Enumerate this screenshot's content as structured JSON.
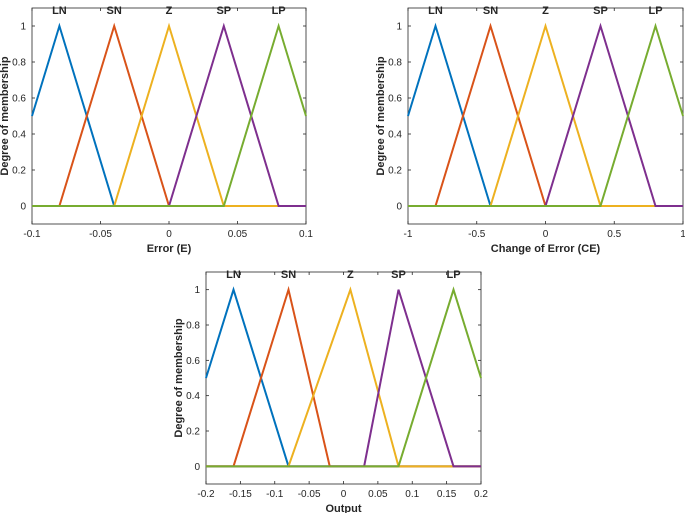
{
  "chart_data": [
    {
      "type": "line",
      "title": "",
      "xlabel": "Error (E)",
      "ylabel": "Degree of membership",
      "xlim": [
        -0.1,
        0.1
      ],
      "ylim": [
        -0.1,
        1.1
      ],
      "xticks": [
        -0.1,
        -0.05,
        0,
        0.05,
        0.1
      ],
      "xtick_labels": [
        "-0.1",
        "-0.05",
        "0",
        "0.05",
        "0.1"
      ],
      "yticks": [
        0,
        0.2,
        0.4,
        0.6,
        0.8,
        1
      ],
      "ytick_labels": [
        "0",
        "0.2",
        "0.4",
        "0.6",
        "0.8",
        "1"
      ],
      "series": [
        {
          "name": "LN",
          "color": "#0072BD",
          "x": [
            -0.1,
            -0.08,
            -0.04,
            0.1
          ],
          "y": [
            0.5,
            1,
            0,
            0
          ]
        },
        {
          "name": "SN",
          "color": "#D95319",
          "x": [
            -0.1,
            -0.08,
            -0.04,
            0,
            0.1
          ],
          "y": [
            0,
            0,
            1,
            0,
            0
          ]
        },
        {
          "name": "Z",
          "color": "#EDB120",
          "x": [
            -0.1,
            -0.04,
            0,
            0.04,
            0.1
          ],
          "y": [
            0,
            0,
            1,
            0,
            0
          ]
        },
        {
          "name": "SP",
          "color": "#7E2F8E",
          "x": [
            -0.1,
            0,
            0.04,
            0.08,
            0.1
          ],
          "y": [
            0,
            0,
            1,
            0,
            0
          ]
        },
        {
          "name": "LP",
          "color": "#77AC30",
          "x": [
            -0.1,
            0.04,
            0.08,
            0.1
          ],
          "y": [
            0,
            0,
            1,
            0.5
          ]
        }
      ],
      "set_labels": [
        {
          "text": "LN",
          "x": -0.08
        },
        {
          "text": "SN",
          "x": -0.04
        },
        {
          "text": "Z",
          "x": 0
        },
        {
          "text": "SP",
          "x": 0.04
        },
        {
          "text": "LP",
          "x": 0.08
        }
      ]
    },
    {
      "type": "line",
      "title": "",
      "xlabel": "Change of Error (CE)",
      "ylabel": "Degree of membership",
      "xlim": [
        -1,
        1
      ],
      "ylim": [
        -0.1,
        1.1
      ],
      "xticks": [
        -1,
        -0.5,
        0,
        0.5,
        1
      ],
      "xtick_labels": [
        "-1",
        "-0.5",
        "0",
        "0.5",
        "1"
      ],
      "yticks": [
        0,
        0.2,
        0.4,
        0.6,
        0.8,
        1
      ],
      "ytick_labels": [
        "0",
        "0.2",
        "0.4",
        "0.6",
        "0.8",
        "1"
      ],
      "series": [
        {
          "name": "LN",
          "color": "#0072BD",
          "x": [
            -1,
            -0.8,
            -0.4,
            1
          ],
          "y": [
            0.5,
            1,
            0,
            0
          ]
        },
        {
          "name": "SN",
          "color": "#D95319",
          "x": [
            -1,
            -0.8,
            -0.4,
            0,
            1
          ],
          "y": [
            0,
            0,
            1,
            0,
            0
          ]
        },
        {
          "name": "Z",
          "color": "#EDB120",
          "x": [
            -1,
            -0.4,
            0,
            0.4,
            1
          ],
          "y": [
            0,
            0,
            1,
            0,
            0
          ]
        },
        {
          "name": "SP",
          "color": "#7E2F8E",
          "x": [
            -1,
            0,
            0.4,
            0.8,
            1
          ],
          "y": [
            0,
            0,
            1,
            0,
            0
          ]
        },
        {
          "name": "LP",
          "color": "#77AC30",
          "x": [
            -1,
            0.4,
            0.8,
            1
          ],
          "y": [
            0,
            0,
            1,
            0.5
          ]
        }
      ],
      "set_labels": [
        {
          "text": "LN",
          "x": -0.8
        },
        {
          "text": "SN",
          "x": -0.4
        },
        {
          "text": "Z",
          "x": 0
        },
        {
          "text": "SP",
          "x": 0.4
        },
        {
          "text": "LP",
          "x": 0.8
        }
      ]
    },
    {
      "type": "line",
      "title": "",
      "xlabel": "Output",
      "ylabel": "Degree of membership",
      "xlim": [
        -0.2,
        0.2
      ],
      "ylim": [
        -0.1,
        1.1
      ],
      "xticks": [
        -0.2,
        -0.15,
        -0.1,
        -0.05,
        0,
        0.05,
        0.1,
        0.15,
        0.2
      ],
      "xtick_labels": [
        "-0.2",
        "-0.15",
        "-0.1",
        "-0.05",
        "0",
        "0.05",
        "0.1",
        "0.15",
        "0.2"
      ],
      "yticks": [
        0,
        0.2,
        0.4,
        0.6,
        0.8,
        1
      ],
      "ytick_labels": [
        "0",
        "0.2",
        "0.4",
        "0.6",
        "0.8",
        "1"
      ],
      "series": [
        {
          "name": "LN",
          "color": "#0072BD",
          "x": [
            -0.2,
            -0.16,
            -0.08,
            0.2
          ],
          "y": [
            0.5,
            1,
            0,
            0
          ]
        },
        {
          "name": "SN",
          "color": "#D95319",
          "x": [
            -0.2,
            -0.16,
            -0.08,
            -0.02,
            0.2
          ],
          "y": [
            0,
            0,
            1,
            0,
            0
          ]
        },
        {
          "name": "Z",
          "color": "#EDB120",
          "x": [
            -0.2,
            -0.08,
            0.01,
            0.08,
            0.2
          ],
          "y": [
            0,
            0,
            1,
            0,
            0
          ]
        },
        {
          "name": "SP",
          "color": "#7E2F8E",
          "x": [
            -0.2,
            0.03,
            0.08,
            0.16,
            0.2
          ],
          "y": [
            0,
            0,
            1,
            0,
            0
          ]
        },
        {
          "name": "LP",
          "color": "#77AC30",
          "x": [
            -0.2,
            0.08,
            0.16,
            0.2
          ],
          "y": [
            0,
            0,
            1,
            0.5
          ]
        }
      ],
      "set_labels": [
        {
          "text": "LN",
          "x": -0.16
        },
        {
          "text": "SN",
          "x": -0.08
        },
        {
          "text": "Z",
          "x": 0.01
        },
        {
          "text": "SP",
          "x": 0.08
        },
        {
          "text": "LP",
          "x": 0.16
        }
      ]
    }
  ]
}
